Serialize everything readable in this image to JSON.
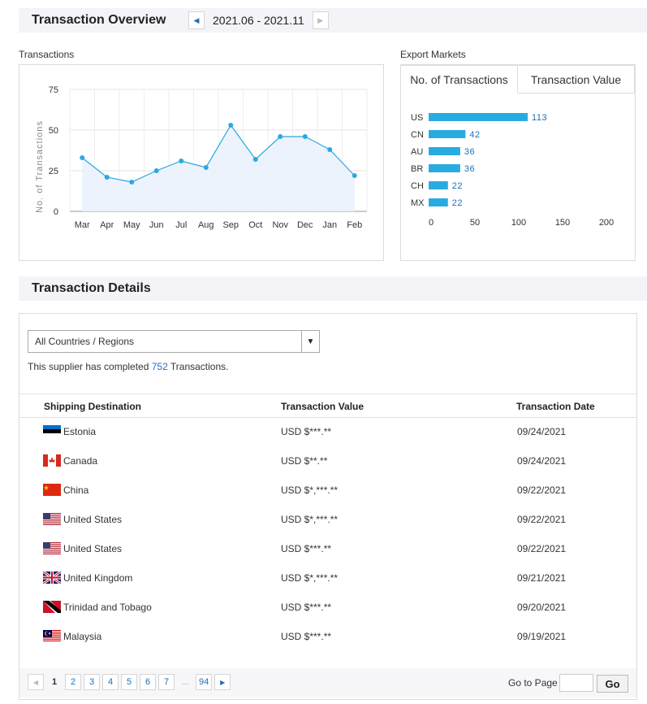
{
  "overview": {
    "title": "Transaction Overview",
    "date_range": "2021.06 - 2021.11",
    "prev_icon": "chevron-left-icon",
    "next_icon": "chevron-right-icon"
  },
  "transactions_panel": {
    "label": "Transactions"
  },
  "export_panel": {
    "label": "Export Markets",
    "tabs": [
      {
        "label": "No. of Transactions",
        "active": true
      },
      {
        "label": "Transaction Value",
        "active": false
      }
    ]
  },
  "colors": {
    "accent": "#1e6fb8",
    "line": "#2ba8e0",
    "bar": "#29abe2",
    "area_fill": "#eaf2fc"
  },
  "chart_data": [
    {
      "type": "area",
      "categories": [
        "Mar",
        "Apr",
        "May",
        "Jun",
        "Jul",
        "Aug",
        "Sep",
        "Oct",
        "Nov",
        "Dec",
        "Jan",
        "Feb"
      ],
      "values": [
        33,
        21,
        18,
        25,
        31,
        27,
        53,
        32,
        46,
        46,
        38,
        22
      ],
      "ylabel": "No. of Transactions",
      "yticks": [
        0,
        25,
        50,
        75
      ],
      "ylim": [
        0,
        75
      ],
      "grid": true
    },
    {
      "type": "bar",
      "orientation": "horizontal",
      "categories": [
        "US",
        "CN",
        "AU",
        "BR",
        "CH",
        "MX"
      ],
      "values": [
        113,
        42,
        36,
        36,
        22,
        22
      ],
      "xticks": [
        0,
        50,
        100,
        150,
        200
      ],
      "xlim": [
        0,
        200
      ],
      "data_labels": true
    }
  ],
  "details": {
    "title": "Transaction Details",
    "filter_value": "All Countries / Regions",
    "summary_prefix": "This supplier has completed ",
    "summary_count": "752",
    "summary_suffix": " Transactions.",
    "columns": [
      "Shipping Destination",
      "Transaction Value",
      "Transaction Date"
    ],
    "rows": [
      {
        "flag": "estonia-flag-icon",
        "country": "Estonia",
        "value": "USD $***.**",
        "date": "09/24/2021"
      },
      {
        "flag": "canada-flag-icon",
        "country": "Canada",
        "value": "USD $**.**",
        "date": "09/24/2021"
      },
      {
        "flag": "china-flag-icon",
        "country": "China",
        "value": "USD $*,***.**",
        "date": "09/22/2021"
      },
      {
        "flag": "united-states-flag-icon",
        "country": "United States",
        "value": "USD $*,***.**",
        "date": "09/22/2021"
      },
      {
        "flag": "united-states-flag-icon",
        "country": "United States",
        "value": "USD $***.**",
        "date": "09/22/2021"
      },
      {
        "flag": "united-kingdom-flag-icon",
        "country": "United Kingdom",
        "value": "USD $*,***.**",
        "date": "09/21/2021"
      },
      {
        "flag": "trinidad-and-tobago-flag-icon",
        "country": "Trinidad and Tobago",
        "value": "USD $***.**",
        "date": "09/20/2021"
      },
      {
        "flag": "malaysia-flag-icon",
        "country": "Malaysia",
        "value": "USD $***.**",
        "date": "09/19/2021"
      }
    ]
  },
  "pagination": {
    "pages": [
      "1",
      "2",
      "3",
      "4",
      "5",
      "6",
      "7"
    ],
    "current": "1",
    "ellipsis": "...",
    "last": "94",
    "goto_label": "Go to Page",
    "go_button": "Go"
  }
}
